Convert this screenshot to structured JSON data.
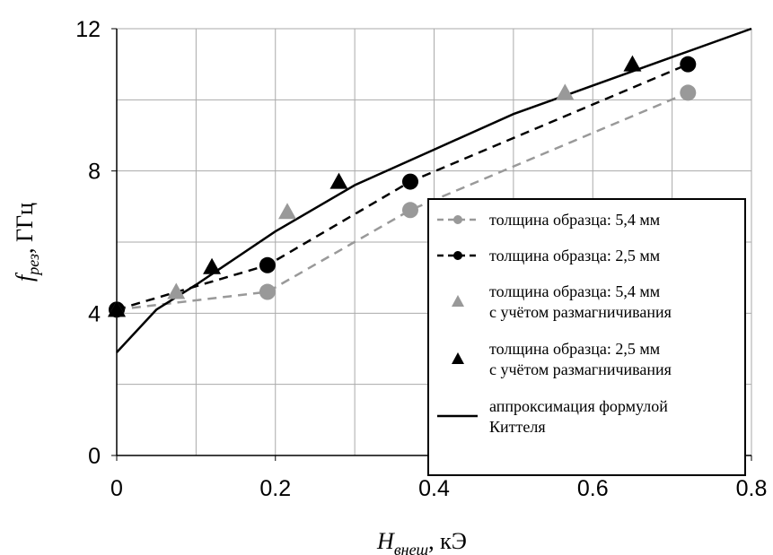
{
  "chart_data": {
    "type": "scatter",
    "xlabel": {
      "symbol": "H",
      "subscript": "внеш",
      "unit": ", кЭ"
    },
    "ylabel": {
      "symbol": "f",
      "subscript": "рез",
      "unit": ", ГГц"
    },
    "xlim": [
      0,
      0.8
    ],
    "ylim": [
      0,
      12
    ],
    "xticks": [
      0,
      0.2,
      0.4,
      0.6,
      0.8
    ],
    "yticks": [
      0,
      4,
      8,
      12
    ],
    "xminor": [
      0.1,
      0.3,
      0.5,
      0.7
    ],
    "yminor": [
      2,
      6,
      10
    ],
    "grid": true,
    "legend": "lower right",
    "series": [
      {
        "name": [
          "толщина образца: 5,4 мм"
        ],
        "color": "#999999",
        "marker": "circle",
        "line": "dashed",
        "x": [
          0,
          0.19,
          0.37,
          0.72
        ],
        "values": [
          4.1,
          4.6,
          6.9,
          10.2
        ]
      },
      {
        "name": [
          "толщина образца: 2,5 мм"
        ],
        "color": "#000000",
        "marker": "circle",
        "line": "dashed",
        "x": [
          0,
          0.19,
          0.37,
          0.72
        ],
        "values": [
          4.1,
          5.35,
          7.7,
          11
        ]
      },
      {
        "name": [
          "толщина образца: 5,4 мм",
          "с учётом размагничивания"
        ],
        "color": "#999999",
        "marker": "triangle",
        "x": [
          0,
          0.075,
          0.215,
          0.565
        ],
        "values": [
          4.1,
          4.6,
          6.85,
          10.2
        ]
      },
      {
        "name": [
          "толщина образца: 2,5 мм",
          "с учётом размагничивания"
        ],
        "color": "#000000",
        "marker": "triangle",
        "x": [
          0,
          0.12,
          0.28,
          0.65
        ],
        "values": [
          4.1,
          5.3,
          7.7,
          11
        ]
      },
      {
        "name": [
          "аппроксимация формулой",
          "Киттеля"
        ],
        "color": "#000000",
        "line": "solid",
        "x": [
          0,
          0.05,
          0.1,
          0.2,
          0.3,
          0.4,
          0.5,
          0.6,
          0.7,
          0.8
        ],
        "values": [
          2.9,
          4.1,
          4.8,
          6.3,
          7.6,
          8.6,
          9.6,
          10.4,
          11.2,
          12
        ]
      }
    ]
  }
}
